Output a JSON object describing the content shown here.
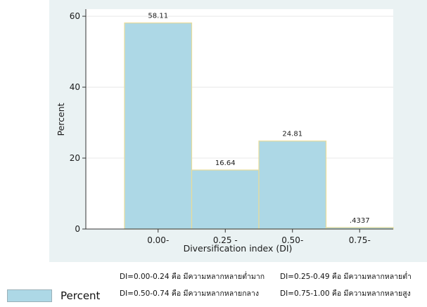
{
  "chart_data": {
    "type": "bar",
    "categories": [
      "0.00-",
      "0.25 -",
      "0.50-",
      "0.75-"
    ],
    "values": [
      58.11,
      16.64,
      24.81,
      0.4337
    ],
    "value_labels": [
      "58.11",
      "16.64",
      "24.81",
      ".4337"
    ],
    "xlabel": "Diversification index (DI)",
    "ylabel": "Percent",
    "ylim": [
      0,
      62
    ],
    "yticks": [
      0,
      20,
      40,
      60
    ],
    "grid": true,
    "legend_position": "bottom-left",
    "series": [
      {
        "name": "Percent",
        "values": [
          58.11,
          16.64,
          24.81,
          0.4337
        ]
      }
    ]
  },
  "legend": {
    "label": "Percent"
  },
  "notes": {
    "row1_col1": "DI=0.00-0.24 คือ มีความหลากหลายต่ำมาก",
    "row1_col2": "DI=0.25-0.49 คือ มีความหลากหลายต่ำ",
    "row2_col1": "DI=0.50-0.74 คือ มีความหลากหลายกลาง",
    "row2_col2": "DI=0.75-1.00 คือ มีความหลากหลายสูง"
  },
  "colors": {
    "bar_fill": "#add8e6",
    "bar_stroke": "#e8dc9a",
    "plot_background": "#ffffff",
    "outer_background": "#eaf2f3",
    "grid": "#e8e8e8",
    "axis": "#333333"
  }
}
